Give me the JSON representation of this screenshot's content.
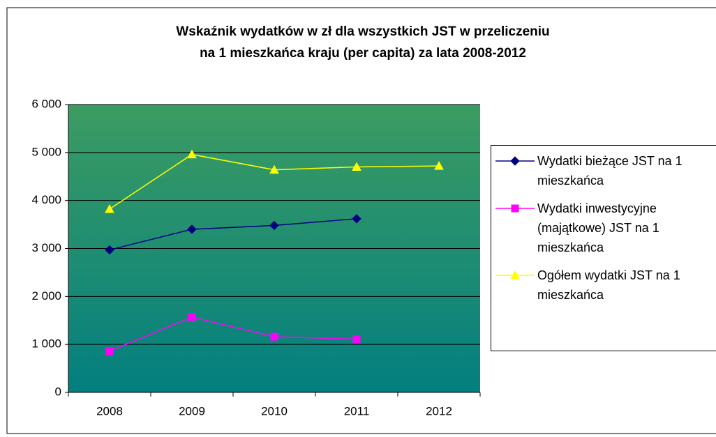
{
  "chart_data": {
    "type": "line",
    "title": [
      "Wskaźnik wydatków w zł dla wszystkich JST w przeliczeniu",
      "na 1 mieszkańca kraju (per capita) za lata 2008-2012"
    ],
    "categories": [
      "2008",
      "2009",
      "2010",
      "2011",
      "2012"
    ],
    "series": [
      {
        "name": "Wydatki bieżące JST na 1 mieszkańca",
        "color": "#000080",
        "marker": "diamond",
        "values": [
          2970,
          3400,
          3480,
          3620,
          null
        ]
      },
      {
        "name": "Wydatki inwestycyjne (majątkowe) JST na 1 mieszkańca",
        "color": "#ff00ff",
        "marker": "square",
        "values": [
          860,
          1570,
          1160,
          1110,
          null
        ]
      },
      {
        "name": "Ogółem wydatki JST na 1 mieszkańca",
        "color": "#ffff00",
        "marker": "triangle",
        "values": [
          3820,
          4960,
          4640,
          4700,
          4720
        ]
      }
    ],
    "ylim": [
      0,
      6000
    ],
    "yticks": [
      0,
      {
        "value": 1000,
        "label": "1 000"
      },
      {
        "value": 2000,
        "label": "2 000"
      },
      {
        "value": 3000,
        "label": "3 000"
      },
      {
        "value": 4000,
        "label": "4 000"
      },
      {
        "value": 5000,
        "label": "5 000"
      },
      {
        "value": 6000,
        "label": "6 000"
      }
    ],
    "grid": true,
    "legend": "right"
  }
}
